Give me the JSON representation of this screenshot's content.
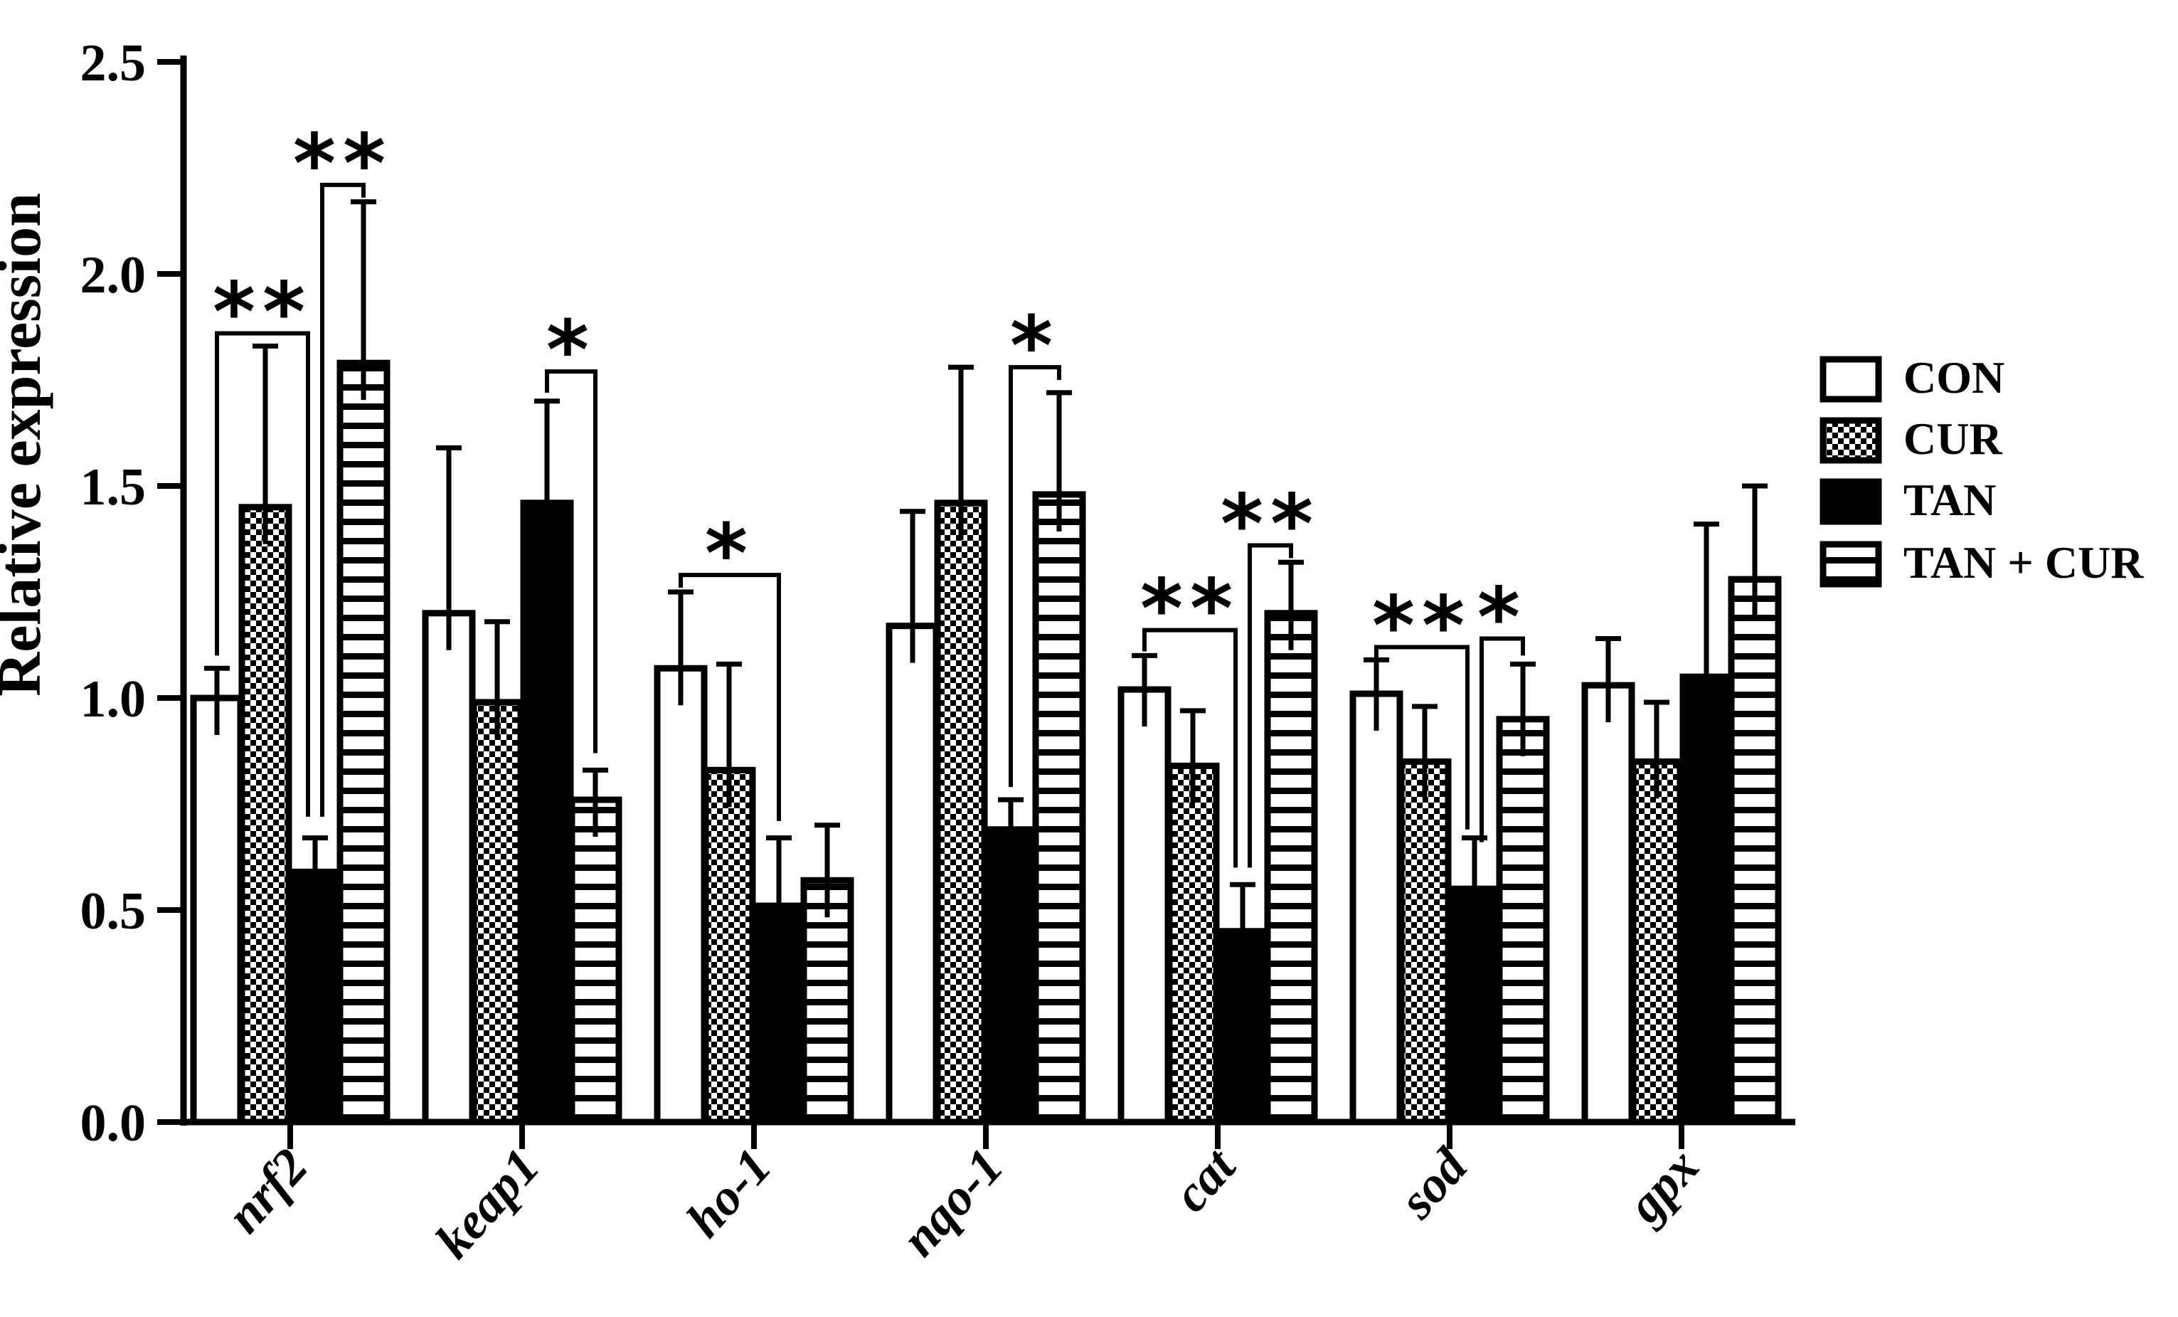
{
  "figure": {
    "description": "Grouped bar chart of relative gene expression with SD error bars and significance brackets"
  },
  "chart_data": {
    "type": "bar",
    "title": "",
    "xlabel": "",
    "ylabel": "Relative expression",
    "ylim": [
      0,
      2.5
    ],
    "yticks": [
      "0.0",
      "0.5",
      "1.0",
      "1.5",
      "2.0",
      "2.5"
    ],
    "ytick_values": [
      0,
      0.5,
      1.0,
      1.5,
      2.0,
      2.5
    ],
    "grid": false,
    "legend_position": "right",
    "categories": [
      "nrf2",
      "keap1",
      "ho-1",
      "nqo-1",
      "cat",
      "sod",
      "gpx"
    ],
    "series": [
      {
        "name": "CON",
        "pattern": "white",
        "values": [
          1.0,
          1.2,
          1.07,
          1.17,
          1.02,
          1.01,
          1.03
        ],
        "errors": [
          0.07,
          0.39,
          0.18,
          0.27,
          0.08,
          0.08,
          0.11
        ]
      },
      {
        "name": "CUR",
        "pattern": "checker",
        "values": [
          1.45,
          0.99,
          0.83,
          1.46,
          0.84,
          0.85,
          0.85
        ],
        "errors": [
          0.38,
          0.19,
          0.25,
          0.32,
          0.13,
          0.13,
          0.14
        ]
      },
      {
        "name": "TAN",
        "pattern": "black",
        "values": [
          0.59,
          1.46,
          0.51,
          0.69,
          0.45,
          0.55,
          1.05
        ],
        "errors": [
          0.08,
          0.24,
          0.16,
          0.07,
          0.11,
          0.12,
          0.36
        ]
      },
      {
        "name": "TAN + CUR",
        "pattern": "hstripes",
        "values": [
          1.79,
          0.76,
          0.57,
          1.48,
          1.2,
          0.95,
          1.28
        ],
        "errors": [
          0.38,
          0.07,
          0.13,
          0.24,
          0.12,
          0.13,
          0.22
        ]
      }
    ],
    "significance": [
      {
        "category": "nrf2",
        "a": "CON",
        "b": "TAN",
        "label": "**",
        "height": 1.86,
        "a_end": 1.1,
        "b_end": 0.72,
        "b_shift": -10
      },
      {
        "category": "nrf2",
        "a": "TAN",
        "b": "TAN + CUR",
        "label": "**",
        "height": 2.21,
        "a_end": 0.72,
        "b_end": 2.18,
        "a_shift": 10
      },
      {
        "category": "keap1",
        "a": "TAN",
        "b": "TAN + CUR",
        "label": "*",
        "height": 1.77,
        "a_end": 1.72,
        "b_end": 0.87
      },
      {
        "category": "ho-1",
        "a": "CON",
        "b": "TAN",
        "label": "*",
        "height": 1.29,
        "a_end": 1.26,
        "b_end": 0.71
      },
      {
        "category": "nqo-1",
        "a": "TAN",
        "b": "TAN + CUR",
        "label": "*",
        "height": 1.78,
        "a_end": 0.79,
        "b_end": 1.75
      },
      {
        "category": "cat",
        "a": "CON",
        "b": "TAN",
        "label": "**",
        "height": 1.16,
        "a_end": 1.11,
        "b_end": 0.6,
        "b_shift": -10
      },
      {
        "category": "cat",
        "a": "TAN",
        "b": "TAN + CUR",
        "label": "**",
        "height": 1.36,
        "a_end": 0.6,
        "b_end": 1.33,
        "a_shift": 10
      },
      {
        "category": "sod",
        "a": "CON",
        "b": "TAN",
        "label": "**",
        "height": 1.12,
        "a_end": 1.09,
        "b_end": 0.69,
        "b_shift": -10
      },
      {
        "category": "sod",
        "a": "TAN",
        "b": "TAN + CUR",
        "label": "*",
        "height": 1.14,
        "a_end": 0.66,
        "b_end": 1.1,
        "a_shift": 10
      }
    ],
    "legend": {
      "items": [
        "CON",
        "CUR",
        "TAN",
        "TAN + CUR"
      ]
    },
    "colors": {
      "ink": "#000000",
      "background": "#ffffff"
    }
  }
}
